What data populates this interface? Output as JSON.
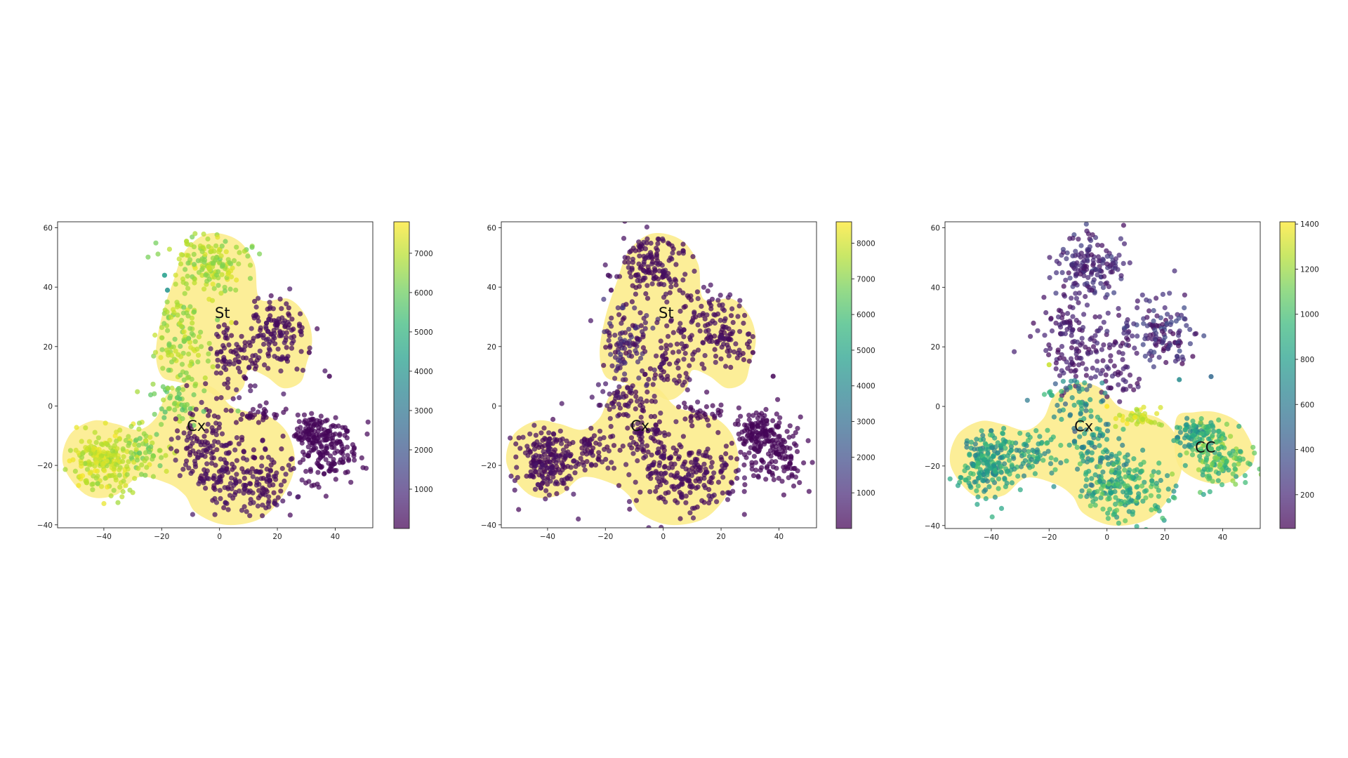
{
  "chart_data": [
    {
      "type": "scatter",
      "title": "",
      "xlabel": "",
      "ylabel": "",
      "xlim": [
        -56,
        53
      ],
      "ylim": [
        -41,
        62
      ],
      "xticks": [
        -40,
        -20,
        0,
        20,
        40
      ],
      "yticks": [
        -40,
        -20,
        0,
        20,
        40,
        60
      ],
      "xtick_labels": [
        "−40",
        "−20",
        "0",
        "20",
        "40"
      ],
      "ytick_labels": [
        "−40",
        "−20",
        "0",
        "20",
        "40",
        "60"
      ],
      "colormap": "viridis",
      "colorbar": {
        "range": [
          0,
          7800
        ],
        "ticks": [
          1000,
          2000,
          3000,
          4000,
          5000,
          6000,
          7000
        ],
        "tick_labels": [
          "1000",
          "2000",
          "3000",
          "4000",
          "5000",
          "6000",
          "7000"
        ]
      },
      "grid": false,
      "annotations": [
        {
          "text": "St",
          "x": 1,
          "y": 31
        },
        {
          "text": "Cx",
          "x": -8,
          "y": -7
        }
      ],
      "clusters": [
        {
          "cx": -4,
          "cy": 47,
          "sx": 7,
          "sy": 6,
          "n": 150,
          "value": 6800,
          "spread": 700
        },
        {
          "cx": -13,
          "cy": 22,
          "sx": 5,
          "sy": 8,
          "n": 110,
          "value": 6700,
          "spread": 700
        },
        {
          "cx": 3,
          "cy": 15,
          "sx": 5,
          "sy": 8,
          "n": 70,
          "value": 300,
          "spread": 200
        },
        {
          "cx": 18,
          "cy": 25,
          "sx": 7,
          "sy": 7,
          "n": 140,
          "value": 300,
          "spread": 200
        },
        {
          "cx": -15,
          "cy": 2,
          "sx": 5,
          "sy": 4,
          "n": 50,
          "value": 6200,
          "spread": 800
        },
        {
          "cx": -40,
          "cy": -19,
          "sx": 6,
          "sy": 6,
          "n": 200,
          "value": 7100,
          "spread": 600
        },
        {
          "cx": -25,
          "cy": -15,
          "sx": 5,
          "sy": 4,
          "n": 60,
          "value": 6500,
          "spread": 800
        },
        {
          "cx": -6,
          "cy": -12,
          "sx": 5,
          "sy": 8,
          "n": 90,
          "value": 300,
          "spread": 200
        },
        {
          "cx": 8,
          "cy": -24,
          "sx": 10,
          "sy": 7,
          "n": 200,
          "value": 300,
          "spread": 200
        },
        {
          "cx": 14,
          "cy": -3,
          "sx": 5,
          "sy": 2,
          "n": 30,
          "value": 100,
          "spread": 50
        },
        {
          "cx": 32,
          "cy": -8,
          "sx": 4,
          "sy": 3,
          "n": 80,
          "value": 100,
          "spread": 50
        },
        {
          "cx": 38,
          "cy": -16,
          "sx": 6,
          "sy": 6,
          "n": 150,
          "value": 100,
          "spread": 50
        }
      ],
      "outliers": [
        {
          "x": -19,
          "y": 44,
          "value": 4300
        },
        {
          "x": -18,
          "y": 39,
          "value": 4000
        },
        {
          "x": 38,
          "y": 10,
          "value": 100
        },
        {
          "x": 31,
          "y": 18,
          "value": 100
        }
      ]
    },
    {
      "type": "scatter",
      "title": "",
      "xlabel": "",
      "ylabel": "",
      "xlim": [
        -56,
        53
      ],
      "ylim": [
        -41,
        62
      ],
      "xticks": [
        -40,
        -20,
        0,
        20,
        40
      ],
      "yticks": [
        -40,
        -20,
        0,
        20,
        40,
        60
      ],
      "xtick_labels": [
        "−40",
        "−20",
        "0",
        "20",
        "40"
      ],
      "ytick_labels": [
        "−40",
        "−20",
        "0",
        "20",
        "40",
        "60"
      ],
      "colormap": "viridis",
      "colorbar": {
        "range": [
          0,
          8600
        ],
        "ticks": [
          1000,
          2000,
          3000,
          4000,
          5000,
          6000,
          7000,
          8000
        ],
        "tick_labels": [
          "1000",
          "2000",
          "3000",
          "4000",
          "5000",
          "6000",
          "7000",
          "8000"
        ]
      },
      "grid": false,
      "annotations": [
        {
          "text": "St",
          "x": 1,
          "y": 31
        },
        {
          "text": "Cx",
          "x": -8,
          "y": -7
        }
      ],
      "clusters": [
        {
          "cx": -4,
          "cy": 47,
          "sx": 7,
          "sy": 6,
          "n": 150,
          "value": 300,
          "spread": 200
        },
        {
          "cx": -13,
          "cy": 22,
          "sx": 5,
          "sy": 8,
          "n": 110,
          "value": 700,
          "spread": 700
        },
        {
          "cx": 3,
          "cy": 15,
          "sx": 5,
          "sy": 8,
          "n": 70,
          "value": 300,
          "spread": 200
        },
        {
          "cx": 18,
          "cy": 25,
          "sx": 7,
          "sy": 7,
          "n": 140,
          "value": 300,
          "spread": 200
        },
        {
          "cx": -15,
          "cy": 2,
          "sx": 5,
          "sy": 4,
          "n": 50,
          "value": 400,
          "spread": 300
        },
        {
          "cx": -40,
          "cy": -19,
          "sx": 6,
          "sy": 6,
          "n": 200,
          "value": 300,
          "spread": 200
        },
        {
          "cx": -25,
          "cy": -15,
          "sx": 5,
          "sy": 4,
          "n": 60,
          "value": 300,
          "spread": 200
        },
        {
          "cx": -6,
          "cy": -12,
          "sx": 5,
          "sy": 8,
          "n": 90,
          "value": 300,
          "spread": 200
        },
        {
          "cx": 8,
          "cy": -24,
          "sx": 10,
          "sy": 7,
          "n": 200,
          "value": 300,
          "spread": 200
        },
        {
          "cx": 14,
          "cy": -3,
          "sx": 5,
          "sy": 2,
          "n": 30,
          "value": 100,
          "spread": 50
        },
        {
          "cx": 32,
          "cy": -8,
          "sx": 4,
          "sy": 3,
          "n": 80,
          "value": 100,
          "spread": 50
        },
        {
          "cx": 38,
          "cy": -16,
          "sx": 6,
          "sy": 6,
          "n": 150,
          "value": 100,
          "spread": 50
        }
      ],
      "outliers": [
        {
          "x": -19,
          "y": 44,
          "value": 300
        },
        {
          "x": -18,
          "y": 39,
          "value": 200
        },
        {
          "x": 38,
          "y": 10,
          "value": 100
        },
        {
          "x": 31,
          "y": 18,
          "value": 100
        }
      ]
    },
    {
      "type": "scatter",
      "title": "",
      "xlabel": "",
      "ylabel": "",
      "xlim": [
        -56,
        53
      ],
      "ylim": [
        -41,
        62
      ],
      "xticks": [
        -40,
        -20,
        0,
        20,
        40
      ],
      "yticks": [
        -40,
        -20,
        0,
        20,
        40,
        60
      ],
      "xtick_labels": [
        "−40",
        "−20",
        "0",
        "20",
        "40"
      ],
      "ytick_labels": [
        "−40",
        "−20",
        "0",
        "20",
        "40",
        "60"
      ],
      "colormap": "viridis",
      "colorbar": {
        "range": [
          50,
          1410
        ],
        "ticks": [
          200,
          400,
          600,
          800,
          1000,
          1200,
          1400
        ],
        "tick_labels": [
          "200",
          "400",
          "600",
          "800",
          "1000",
          "1200",
          "1400"
        ]
      },
      "grid": false,
      "annotations": [
        {
          "text": "Cx",
          "x": -8,
          "y": -7
        },
        {
          "text": "CC",
          "x": 34,
          "y": -14
        }
      ],
      "clusters": [
        {
          "cx": -6,
          "cy": 47,
          "sx": 7,
          "sy": 6,
          "n": 150,
          "value": 200,
          "spread": 120
        },
        {
          "cx": -13,
          "cy": 22,
          "sx": 6,
          "sy": 8,
          "n": 120,
          "value": 150,
          "spread": 80
        },
        {
          "cx": 3,
          "cy": 15,
          "sx": 5,
          "sy": 8,
          "n": 60,
          "value": 150,
          "spread": 80
        },
        {
          "cx": 18,
          "cy": 25,
          "sx": 7,
          "sy": 7,
          "n": 130,
          "value": 200,
          "spread": 150
        },
        {
          "cx": -12,
          "cy": 2,
          "sx": 5,
          "sy": 4,
          "n": 50,
          "value": 700,
          "spread": 300
        },
        {
          "cx": -40,
          "cy": -19,
          "sx": 6,
          "sy": 6,
          "n": 200,
          "value": 800,
          "spread": 200
        },
        {
          "cx": -25,
          "cy": -15,
          "sx": 5,
          "sy": 4,
          "n": 60,
          "value": 800,
          "spread": 200
        },
        {
          "cx": -4,
          "cy": -14,
          "sx": 5,
          "sy": 8,
          "n": 90,
          "value": 750,
          "spread": 200
        },
        {
          "cx": 6,
          "cy": -28,
          "sx": 9,
          "sy": 6,
          "n": 180,
          "value": 900,
          "spread": 200
        },
        {
          "cx": 12,
          "cy": -4,
          "sx": 5,
          "sy": 2,
          "n": 40,
          "value": 1300,
          "spread": 100
        },
        {
          "cx": 30,
          "cy": -10,
          "sx": 4,
          "sy": 3,
          "n": 70,
          "value": 800,
          "spread": 200
        },
        {
          "cx": 38,
          "cy": -17,
          "sx": 6,
          "sy": 6,
          "n": 140,
          "value": 1000,
          "spread": 200
        }
      ],
      "outliers": [
        {
          "x": -20,
          "y": 14,
          "value": 1300
        },
        {
          "x": 25,
          "y": 9,
          "value": 700
        },
        {
          "x": 36,
          "y": 10,
          "value": 500
        },
        {
          "x": 0,
          "y": 0,
          "value": 1400
        }
      ]
    }
  ]
}
